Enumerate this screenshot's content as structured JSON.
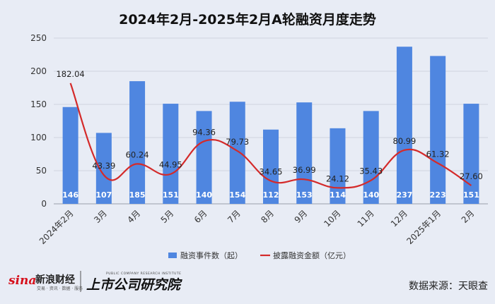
{
  "chart_data": {
    "type": "bar",
    "title": "2024年2月-2025年2月A轮融资月度走势",
    "categories": [
      "2024年2月",
      "3月",
      "4月",
      "5月",
      "6月",
      "7月",
      "8月",
      "9月",
      "10月",
      "11月",
      "12月",
      "2025年1月",
      "2月"
    ],
    "series": [
      {
        "name": "融资事件数（起）",
        "type": "bar",
        "color": "#4f86e0",
        "values": [
          146,
          107,
          185,
          151,
          140,
          154,
          112,
          153,
          114,
          140,
          237,
          223,
          151
        ]
      },
      {
        "name": "披露融资金额（亿元）",
        "type": "line",
        "color": "#d42a2a",
        "smooth": true,
        "values": [
          182.04,
          43.39,
          60.24,
          44.95,
          94.36,
          79.73,
          34.65,
          36.99,
          24.12,
          35.43,
          80.99,
          61.32,
          27.6
        ]
      }
    ],
    "bar_labels": [
      "146",
      "107",
      "185",
      "151",
      "140",
      "154",
      "112",
      "153",
      "114",
      "140",
      "237",
      "223",
      "151"
    ],
    "line_labels": [
      "182.04",
      "43.39",
      "60.24",
      "44.95",
      "94.36",
      "79.73",
      "34.65",
      "36.99",
      "24.12",
      "35.43",
      "80.99",
      "61.32",
      "27.60"
    ],
    "y_ticks": [
      "0",
      "50",
      "100",
      "150",
      "200",
      "250"
    ],
    "ylim": [
      0,
      250
    ],
    "grid": true,
    "legend_position": "bottom"
  },
  "footer": {
    "logo1_sina": "sina",
    "logo1_text": "新浪财经",
    "logo1_sub": "交易 · 资讯 · 数据 · 服务",
    "logo2_text": "上市公司研究院",
    "logo2_sub": "PUBLIC COMPANY RESEARCH INSTITUTE",
    "source": "数据来源：天眼查"
  }
}
